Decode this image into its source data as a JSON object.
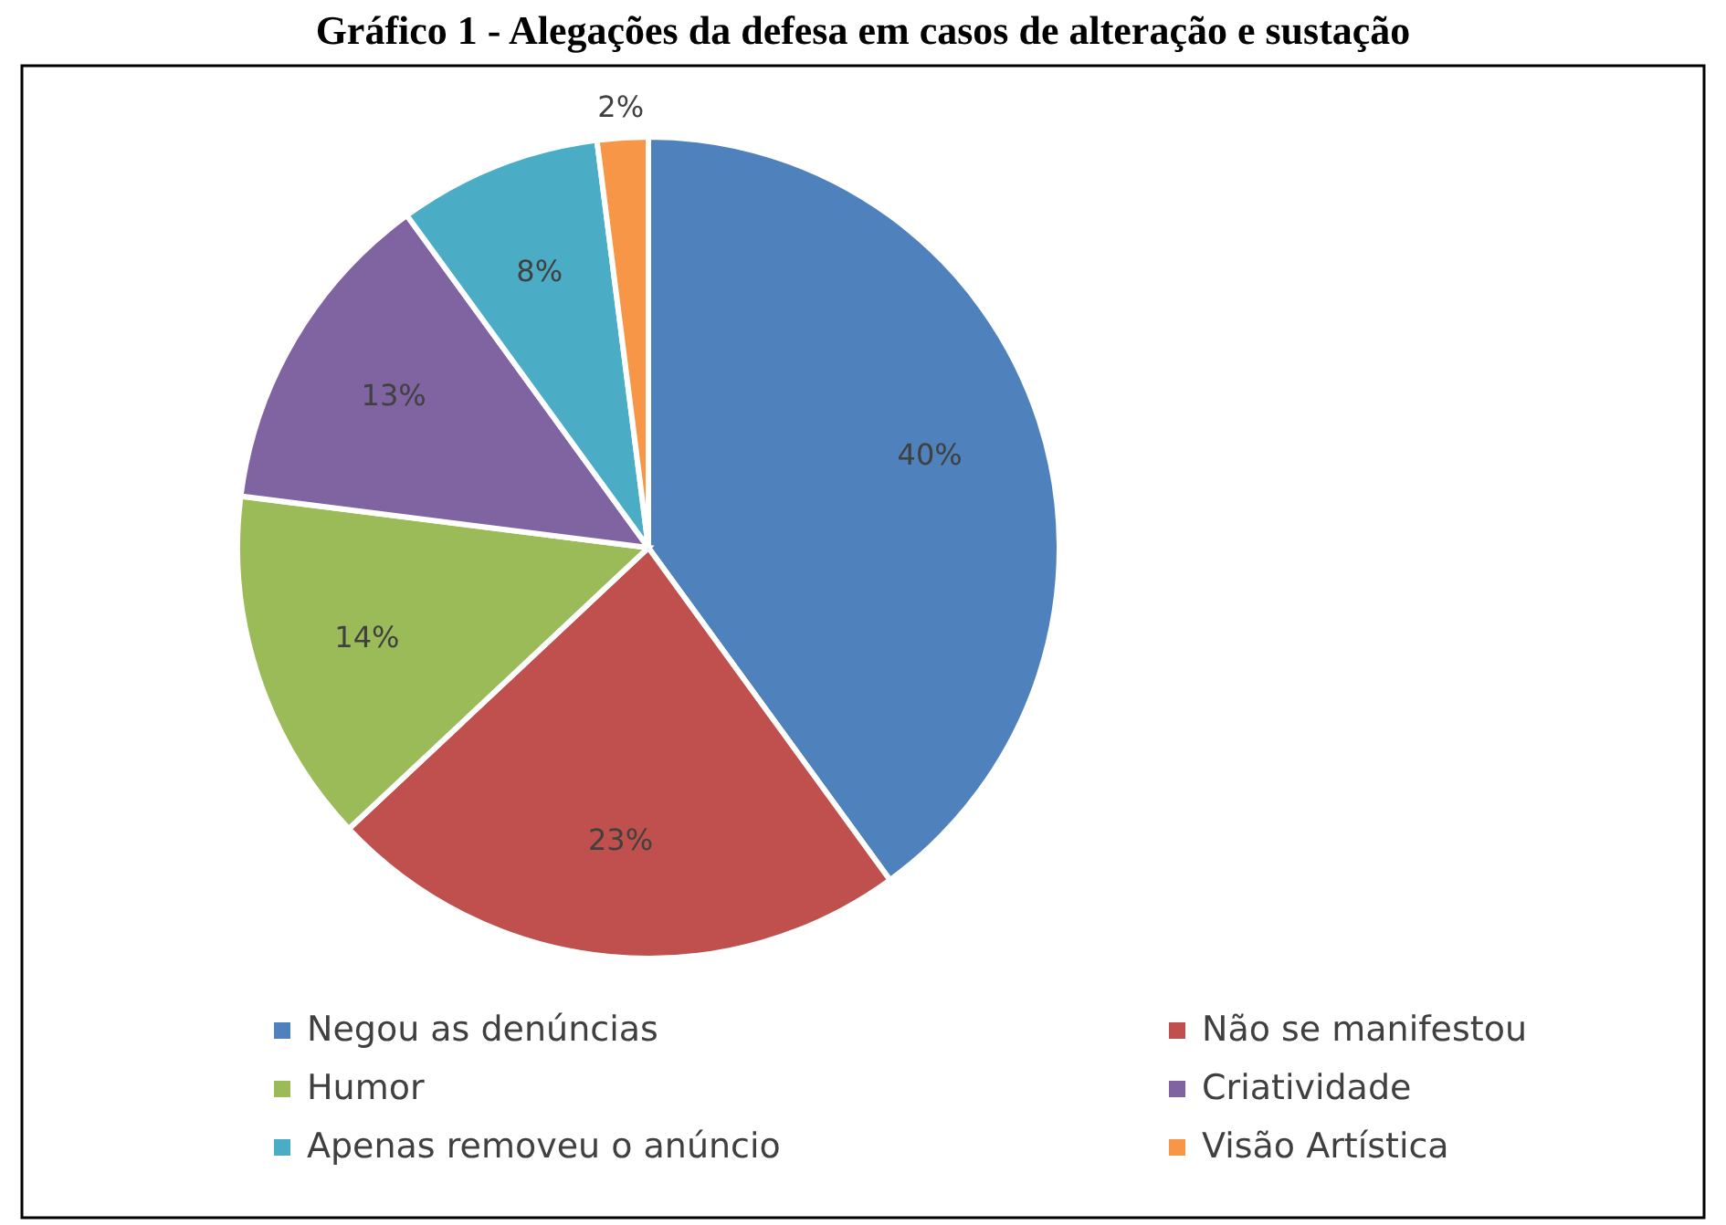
{
  "chart_data": {
    "type": "pie",
    "title": "Gráfico 1 - Alegações da defesa em casos de alteração e sustação",
    "categories": [
      "Negou as denúncias",
      "Não se manifestou",
      "Humor",
      "Criatividade",
      "Apenas removeu o anúncio",
      "Visão Artística"
    ],
    "values": [
      40,
      23,
      14,
      13,
      8,
      2
    ],
    "colors": [
      "#4f81bd",
      "#c0504d",
      "#9bbb59",
      "#8064a2",
      "#4bacc6",
      "#f79646"
    ],
    "value_labels": [
      "40%",
      "23%",
      "14%",
      "13%",
      "8%",
      "2%"
    ],
    "legend": "bottom"
  }
}
